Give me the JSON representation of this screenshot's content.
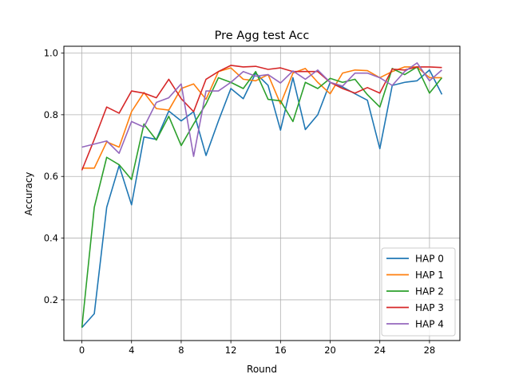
{
  "chart_data": {
    "type": "line",
    "title": "Pre Agg test Acc",
    "xlabel": "Round",
    "ylabel": "Accuracy",
    "xlim": [
      -1.45,
      30.45
    ],
    "ylim": [
      0.068,
      1.022
    ],
    "xticks": [
      0,
      4,
      8,
      12,
      16,
      20,
      24,
      28
    ],
    "yticks": [
      0.2,
      0.4,
      0.6,
      0.8,
      1.0
    ],
    "ytick_labels": [
      "0.2",
      "0.4",
      "0.6",
      "0.8",
      "1.0"
    ],
    "grid": true,
    "legend_position": "bottom-right",
    "x": [
      0,
      1,
      2,
      3,
      4,
      5,
      6,
      7,
      8,
      9,
      10,
      11,
      12,
      13,
      14,
      15,
      16,
      17,
      18,
      19,
      20,
      21,
      22,
      23,
      24,
      25,
      26,
      27,
      28,
      29
    ],
    "series": [
      {
        "name": "HAP 0",
        "color": "#1f77b4",
        "values": [
          0.11,
          0.155,
          0.5,
          0.635,
          0.508,
          0.728,
          0.72,
          0.812,
          0.78,
          0.81,
          0.668,
          0.78,
          0.885,
          0.852,
          0.935,
          0.895,
          0.75,
          0.92,
          0.752,
          0.8,
          0.905,
          0.89,
          0.868,
          0.847,
          0.69,
          0.895,
          0.905,
          0.91,
          0.945,
          0.866
        ]
      },
      {
        "name": "HAP 1",
        "color": "#ff7f0e",
        "values": [
          0.627,
          0.627,
          0.712,
          0.695,
          0.81,
          0.872,
          0.82,
          0.815,
          0.885,
          0.9,
          0.85,
          0.94,
          0.952,
          0.915,
          0.91,
          0.93,
          0.835,
          0.935,
          0.95,
          0.905,
          0.868,
          0.935,
          0.945,
          0.943,
          0.92,
          0.94,
          0.955,
          0.955,
          0.92,
          0.92
        ]
      },
      {
        "name": "HAP 2",
        "color": "#2ca02c",
        "values": [
          0.11,
          0.5,
          0.662,
          0.638,
          0.59,
          0.77,
          0.718,
          0.795,
          0.7,
          0.77,
          0.835,
          0.92,
          0.905,
          0.885,
          0.94,
          0.85,
          0.845,
          0.778,
          0.905,
          0.885,
          0.918,
          0.905,
          0.915,
          0.865,
          0.825,
          0.95,
          0.93,
          0.955,
          0.87,
          0.92
        ]
      },
      {
        "name": "HAP 3",
        "color": "#d62728",
        "values": [
          0.62,
          0.72,
          0.825,
          0.805,
          0.877,
          0.87,
          0.855,
          0.915,
          0.852,
          0.81,
          0.915,
          0.94,
          0.96,
          0.955,
          0.957,
          0.947,
          0.952,
          0.94,
          0.94,
          0.94,
          0.905,
          0.885,
          0.87,
          0.888,
          0.87,
          0.948,
          0.945,
          0.955,
          0.955,
          0.953
        ]
      },
      {
        "name": "HAP 4",
        "color": "#9467bd",
        "values": [
          0.695,
          0.705,
          0.715,
          0.675,
          0.778,
          0.76,
          0.84,
          0.855,
          0.9,
          0.665,
          0.877,
          0.877,
          0.905,
          0.94,
          0.925,
          0.93,
          0.903,
          0.942,
          0.915,
          0.945,
          0.905,
          0.893,
          0.935,
          0.935,
          0.92,
          0.895,
          0.94,
          0.968,
          0.91,
          0.945
        ]
      }
    ]
  }
}
